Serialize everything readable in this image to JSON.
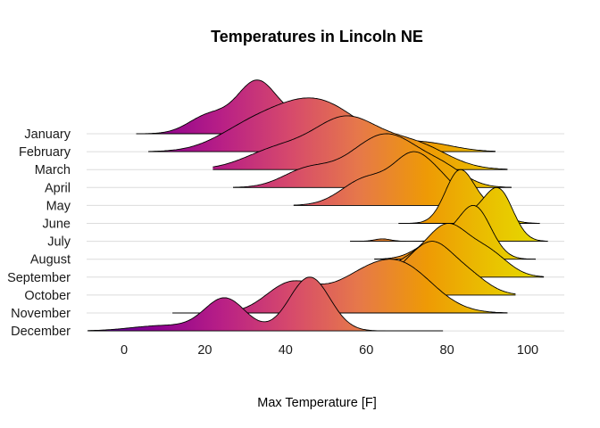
{
  "chart_data": {
    "type": "ridgeline",
    "title": "Temperatures in Lincoln NE",
    "xlabel": "Max Temperature [F]",
    "ylabel": "",
    "xlim": [
      -12,
      108
    ],
    "xticks": [
      0,
      20,
      40,
      60,
      80,
      100
    ],
    "grid": true,
    "fill": "gradient by temperature (plasma palette)",
    "categories": [
      "January",
      "February",
      "March",
      "April",
      "May",
      "June",
      "July",
      "August",
      "September",
      "October",
      "November",
      "December"
    ],
    "series": [
      {
        "name": "January",
        "range": [
          3,
          56
        ],
        "peak": 33,
        "components": [
          [
            33,
            5,
            1
          ],
          [
            21,
            5,
            0.35
          ],
          [
            45,
            5,
            0.3
          ]
        ]
      },
      {
        "name": "February",
        "range": [
          6,
          92
        ],
        "peak": 47,
        "components": [
          [
            47,
            11,
            1
          ],
          [
            30,
            8,
            0.3
          ],
          [
            75,
            7,
            0.15
          ]
        ]
      },
      {
        "name": "March",
        "range": [
          22,
          95
        ],
        "peak": 55,
        "components": [
          [
            55,
            8,
            1
          ],
          [
            38,
            8,
            0.4
          ],
          [
            72,
            8,
            0.5
          ]
        ]
      },
      {
        "name": "April",
        "range": [
          27,
          96
        ],
        "peak": 64,
        "components": [
          [
            65,
            9,
            1
          ],
          [
            45,
            6,
            0.3
          ],
          [
            80,
            5,
            0.2
          ]
        ]
      },
      {
        "name": "May",
        "range": [
          42,
          88
        ],
        "peak": 72,
        "components": [
          [
            72,
            5,
            1
          ],
          [
            60,
            6,
            0.55
          ],
          [
            80,
            4,
            0.3
          ]
        ]
      },
      {
        "name": "June",
        "range": [
          68,
          103
        ],
        "peak": 83,
        "components": [
          [
            83,
            3.5,
            1
          ],
          [
            90,
            4,
            0.3
          ]
        ]
      },
      {
        "name": "July",
        "range": [
          56,
          105
        ],
        "peak": 93,
        "components": [
          [
            93,
            3.5,
            1
          ],
          [
            86,
            4,
            0.5
          ],
          [
            64,
            2,
            0.05
          ]
        ]
      },
      {
        "name": "August",
        "range": [
          62,
          102
        ],
        "peak": 87,
        "components": [
          [
            87,
            4,
            1
          ],
          [
            78,
            5,
            0.4
          ]
        ]
      },
      {
        "name": "September",
        "range": [
          62,
          104
        ],
        "peak": 80,
        "components": [
          [
            80,
            5,
            1
          ],
          [
            90,
            5,
            0.5
          ],
          [
            70,
            5,
            0.3
          ]
        ]
      },
      {
        "name": "October",
        "range": [
          62,
          97
        ],
        "peak": 76,
        "components": [
          [
            76,
            5,
            1
          ],
          [
            68,
            4,
            0.3
          ],
          [
            85,
            5,
            0.4
          ]
        ]
      },
      {
        "name": "November",
        "range": [
          12,
          95
        ],
        "peak": 69,
        "components": [
          [
            69,
            8,
            1
          ],
          [
            41,
            6,
            0.65
          ],
          [
            57,
            8,
            0.6
          ]
        ]
      },
      {
        "name": "December",
        "range": [
          -9,
          79
        ],
        "peak": 46,
        "components": [
          [
            46,
            5,
            1
          ],
          [
            25,
            5,
            0.6
          ],
          [
            10,
            8,
            0.1
          ]
        ]
      }
    ],
    "ridge_height_rows": 3.0,
    "colors": {
      "grid": "#dcdcdc",
      "outline": "#000000",
      "palette": [
        "#4b0a9c",
        "#8b0090",
        "#b81f86",
        "#d6496c",
        "#e6784a",
        "#ee9a05",
        "#e9c400",
        "#e2e600"
      ]
    }
  }
}
